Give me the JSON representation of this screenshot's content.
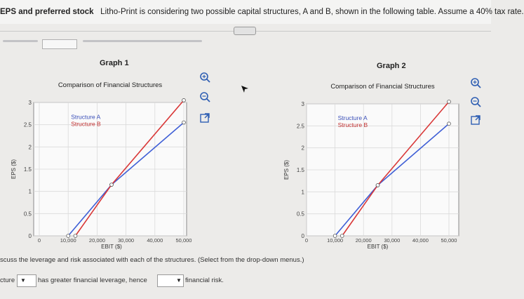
{
  "header": {
    "title_bold": "EPS and preferred stock",
    "title_rest": "Litho-Print is considering two possible capital structures, A and B, shown in the following table. Assume a 40% tax rate."
  },
  "graph1": {
    "label": "Graph 1",
    "chart_title": "Comparison of Financial Structures",
    "legend_a": "Structure A",
    "legend_b": "Structure B",
    "ylabel": "EPS ($)",
    "xlabel": "EBIT ($)",
    "yticks": [
      "0",
      "0.5",
      "1",
      "1.5",
      "2",
      "2.5",
      "3"
    ],
    "xticks": [
      "0",
      "10,000",
      "20,000",
      "30,000",
      "40,000",
      "50,000"
    ]
  },
  "graph2": {
    "label": "Graph 2",
    "chart_title": "Comparison of Financial Structures",
    "legend_a": "Structure A",
    "legend_b": "Structure B",
    "ylabel": "EPS ($)",
    "xlabel": "EBIT ($)",
    "yticks": [
      "0",
      "0.5",
      "1",
      "1.5",
      "2",
      "2.5",
      "3"
    ],
    "xticks": [
      "0",
      "10,000",
      "20,000",
      "30,000",
      "40,000",
      "50,000"
    ]
  },
  "question": {
    "text": "scuss the leverage and risk associated with each of the structures. (Select from the drop-down menus.)",
    "row_start": "cture",
    "middle": "has greater financial leverage, hence",
    "end": "financial risk."
  },
  "colors": {
    "structure_a": "#3f5fd6",
    "structure_b": "#d93838"
  },
  "chart_data": [
    {
      "type": "line",
      "title": "Comparison of Financial Structures",
      "xlabel": "EBIT ($)",
      "ylabel": "EPS ($)",
      "xlim": [
        0,
        50000
      ],
      "ylim": [
        0,
        3
      ],
      "series": [
        {
          "name": "Structure A",
          "points": [
            [
              10000,
              0
            ],
            [
              25000,
              1.15
            ],
            [
              50000,
              2.55
            ]
          ]
        },
        {
          "name": "Structure B",
          "points": [
            [
              12500,
              0
            ],
            [
              25000,
              1.15
            ],
            [
              50000,
              3.05
            ]
          ]
        }
      ]
    },
    {
      "type": "line",
      "title": "Comparison of Financial Structures",
      "xlabel": "EBIT ($)",
      "ylabel": "EPS ($)",
      "xlim": [
        0,
        50000
      ],
      "ylim": [
        0,
        3
      ],
      "series": [
        {
          "name": "Structure A",
          "points": [
            [
              10000,
              0
            ],
            [
              25000,
              1.15
            ],
            [
              50000,
              2.55
            ]
          ]
        },
        {
          "name": "Structure B",
          "points": [
            [
              12500,
              0
            ],
            [
              25000,
              1.15
            ],
            [
              50000,
              3.05
            ]
          ]
        }
      ]
    }
  ]
}
